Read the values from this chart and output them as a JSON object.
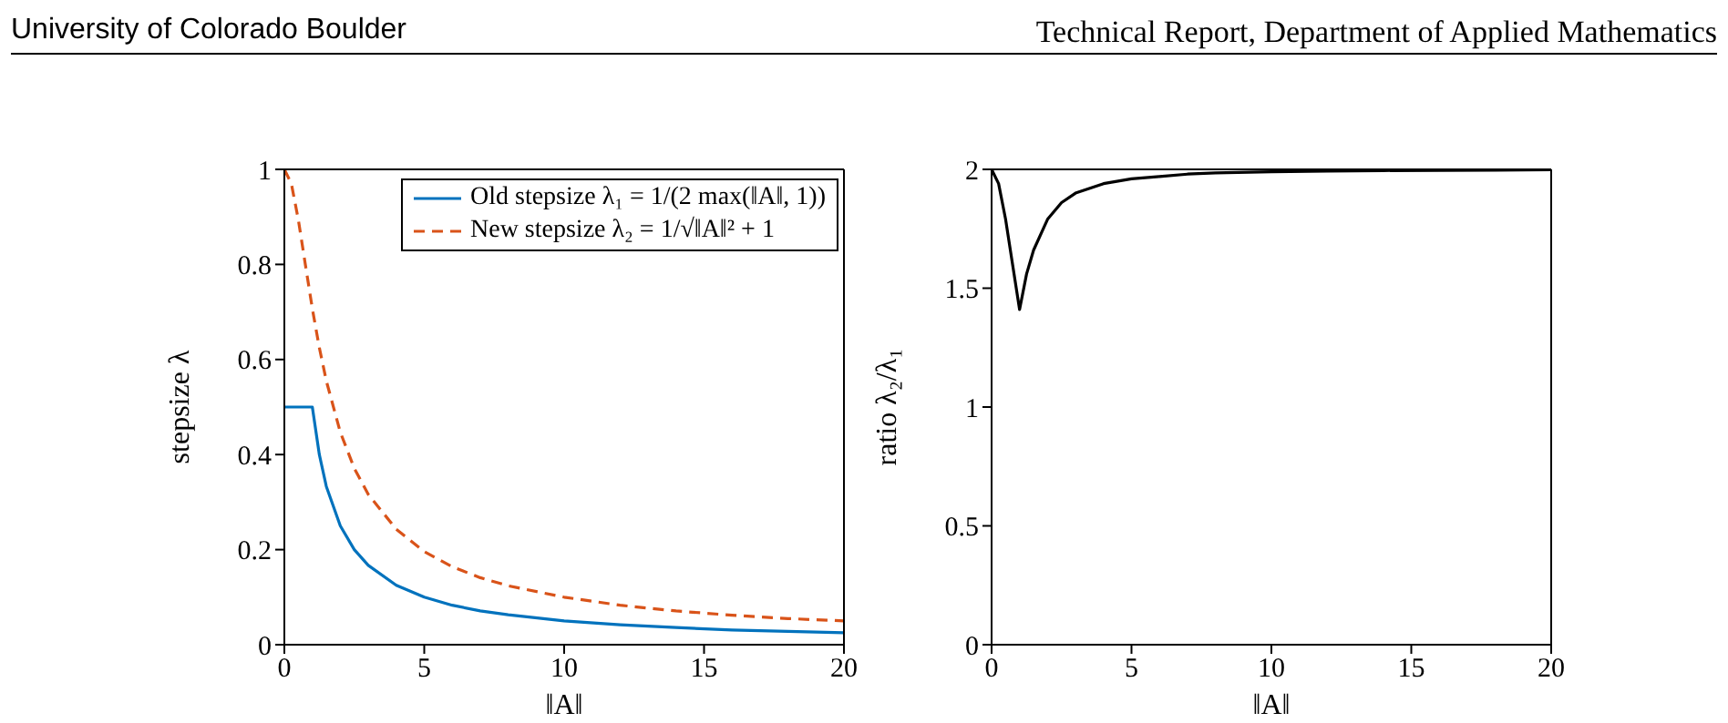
{
  "chart_data": [
    {
      "type": "line",
      "xlabel": "‖A‖",
      "ylabel": "stepsize λ",
      "annotations": [
        "University of Colorado Boulder",
        "Technical Report, Department of Applied Mathematics"
      ],
      "xlim": [
        0,
        20
      ],
      "xticks": [
        0,
        5,
        10,
        15,
        20
      ],
      "ylim": [
        0,
        1
      ],
      "yticks": [
        0,
        0.2,
        0.4,
        0.6,
        0.8,
        1
      ],
      "legend": "top right",
      "marker": "none",
      "series": [
        {
          "name": "Old stepsize λ₁ = 1/(2 max(‖A‖, 1))",
          "color": "#0072bd",
          "line_style": "solid",
          "x": [
            0,
            0.25,
            0.5,
            0.75,
            1,
            1.25,
            1.5,
            2,
            2.5,
            3,
            4,
            5,
            6,
            7,
            8,
            10,
            12,
            14,
            16,
            18,
            20
          ],
          "values": [
            0.5,
            0.5,
            0.5,
            0.5,
            0.5,
            0.4,
            0.333,
            0.25,
            0.2,
            0.167,
            0.125,
            0.1,
            0.083,
            0.071,
            0.063,
            0.05,
            0.042,
            0.036,
            0.031,
            0.028,
            0.025
          ]
        },
        {
          "name": "New stepsize λ₂ = 1/√‖A‖² + 1",
          "color": "#d95319",
          "line_style": "dashed",
          "x": [
            0,
            0.25,
            0.5,
            0.75,
            1,
            1.25,
            1.5,
            2,
            2.5,
            3,
            4,
            5,
            6,
            7,
            8,
            10,
            12,
            14,
            16,
            18,
            20
          ],
          "values": [
            1,
            0.97,
            0.894,
            0.8,
            0.707,
            0.625,
            0.555,
            0.447,
            0.371,
            0.316,
            0.243,
            0.196,
            0.164,
            0.141,
            0.124,
            0.1,
            0.083,
            0.071,
            0.062,
            0.055,
            0.05
          ]
        }
      ]
    },
    {
      "type": "line",
      "xlabel": "‖A‖",
      "ylabel": "ratio λ₂/λ₁",
      "xlim": [
        0,
        20
      ],
      "xticks": [
        0,
        5,
        10,
        15,
        20
      ],
      "ylim": [
        0,
        2
      ],
      "yticks": [
        0,
        0.5,
        1,
        1.5,
        2
      ],
      "legend": false,
      "marker": "none",
      "series": [
        {
          "color": "#000000",
          "line_style": "solid",
          "x": [
            0,
            0.25,
            0.5,
            0.75,
            1,
            1.25,
            1.5,
            2,
            2.5,
            3,
            4,
            5,
            6,
            7,
            8,
            10,
            12,
            14,
            16,
            18,
            20
          ],
          "values": [
            2,
            1.94,
            1.79,
            1.6,
            1.41,
            1.56,
            1.66,
            1.79,
            1.86,
            1.9,
            1.94,
            1.96,
            1.97,
            1.98,
            1.985,
            1.99,
            1.993,
            1.995,
            1.996,
            1.997,
            1.998
          ]
        }
      ]
    }
  ]
}
